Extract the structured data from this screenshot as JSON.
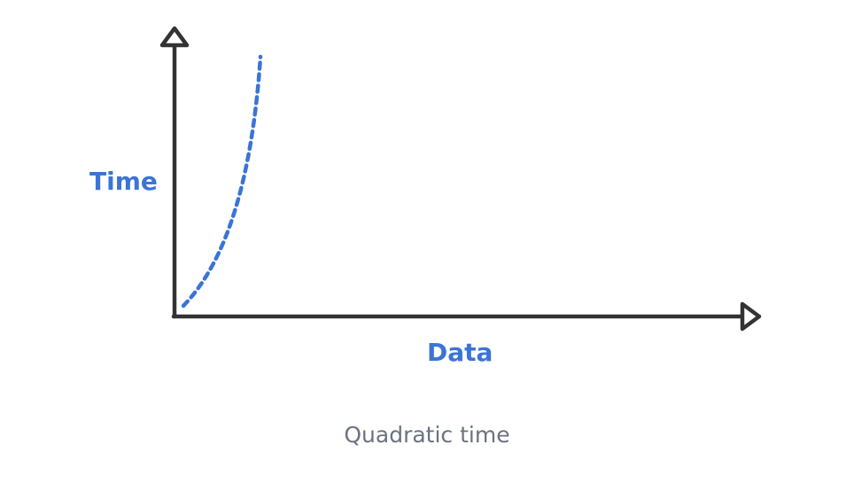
{
  "diagram": {
    "y_axis_label": "Time",
    "x_axis_label": "Data",
    "caption": "Quadratic time"
  },
  "colors": {
    "axis": "#333333",
    "curve": "#3B74D5",
    "label": "#3B74D5",
    "caption": "#6B7280"
  },
  "curve": {
    "style": "dashed",
    "shape": "quadratic"
  }
}
